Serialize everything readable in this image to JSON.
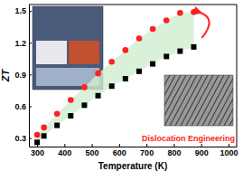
{
  "chart_data": {
    "type": "scatter",
    "x_label": "Temperature (K)",
    "y_label": "ZT",
    "annotation": "Dislocation Engineering",
    "x": [
      300,
      325,
      373,
      423,
      473,
      523,
      573,
      623,
      673,
      723,
      773,
      823,
      873
    ],
    "series": [
      {
        "color": "#000000",
        "marker": "square",
        "values": [
          0.26,
          0.32,
          0.42,
          0.51,
          0.61,
          0.7,
          0.79,
          0.86,
          0.93,
          1.0,
          1.07,
          1.12,
          1.16
        ]
      },
      {
        "color": "#ff2020",
        "marker": "circle",
        "values": [
          0.33,
          0.4,
          0.53,
          0.66,
          0.78,
          0.91,
          1.02,
          1.13,
          1.24,
          1.33,
          1.41,
          1.48,
          1.49
        ]
      }
    ],
    "xlim": [
      270,
      1030
    ],
    "xticks": [
      300,
      400,
      500,
      600,
      700,
      800,
      900,
      1000
    ],
    "ylim": [
      0.22,
      1.56
    ],
    "yticks": [
      0.3,
      0.6,
      0.9,
      1.2,
      1.5
    ]
  }
}
